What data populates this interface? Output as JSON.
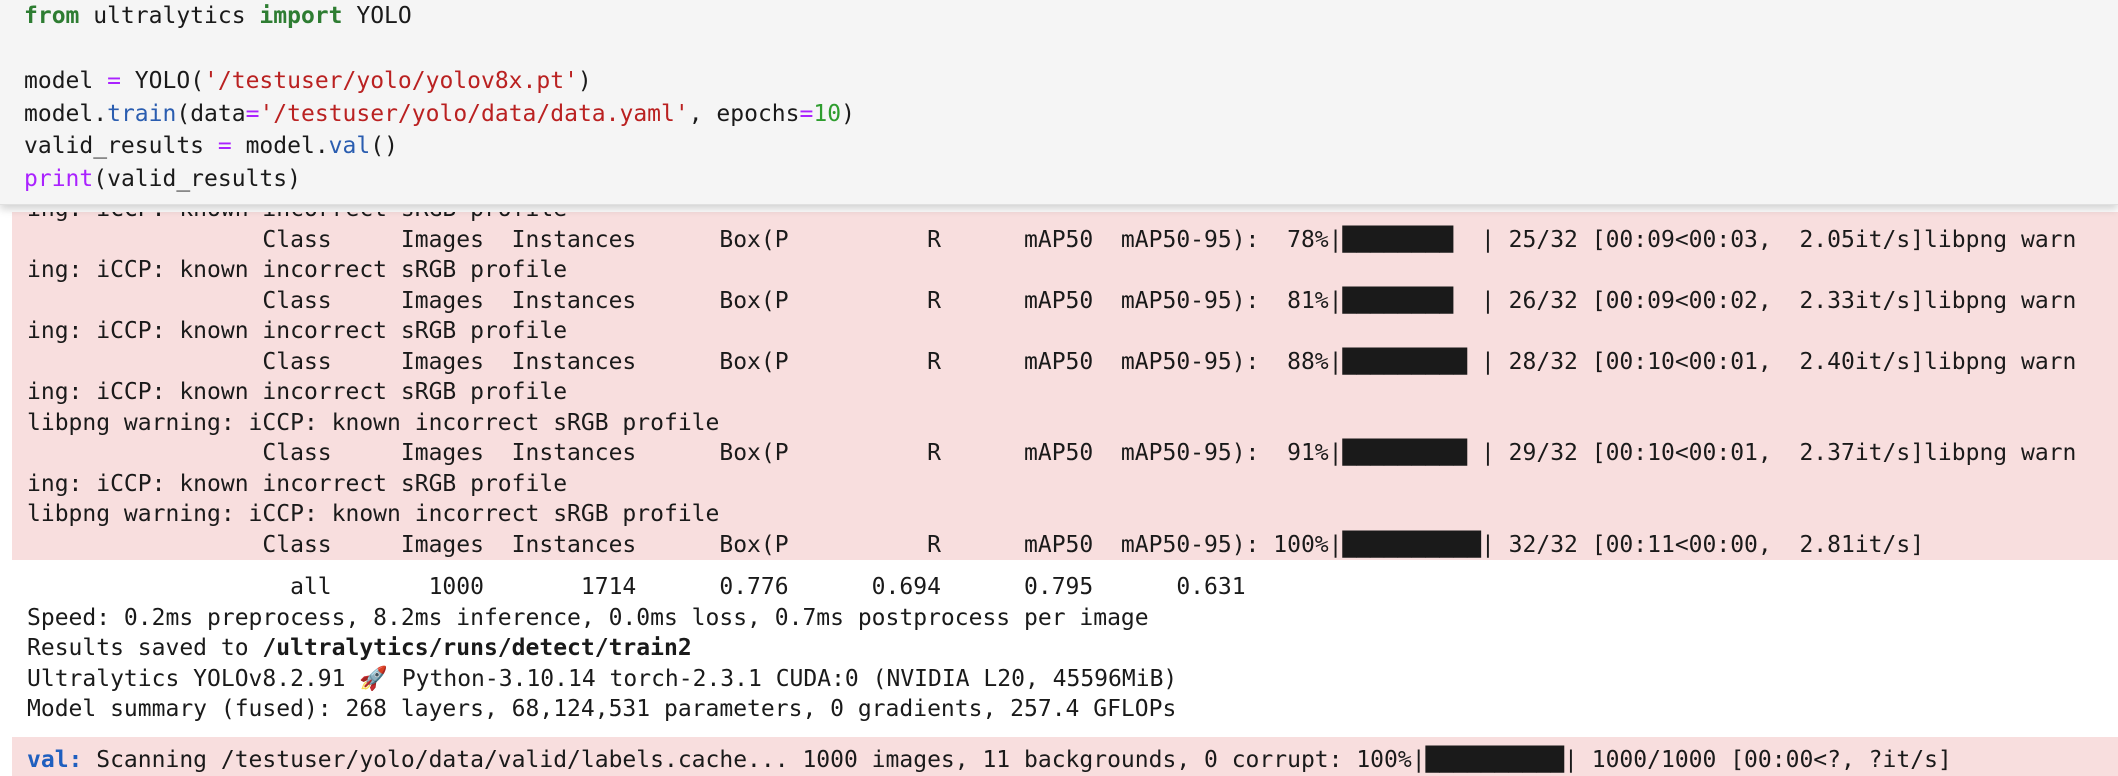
{
  "code_cell": {
    "lines": [
      [
        "from",
        " ultralytics ",
        "import",
        " YOLO"
      ],
      [],
      [
        "model ",
        "=",
        " YOLO(",
        "'/testuser/yolo/yolov8x.pt'",
        ")"
      ],
      [
        "model.",
        "train",
        "(data",
        "=",
        "'/testuser/yolo/data/data.yaml'",
        ", epochs",
        "=",
        "10",
        ")"
      ],
      [
        "valid_results ",
        "=",
        " model.",
        "val",
        "()"
      ],
      [
        "print",
        "(valid_results)"
      ]
    ]
  },
  "stderr_output": {
    "lines": [
      "ing: iCCP: known incorrect sRGB profile",
      "                 Class     Images  Instances      Box(P          R      mAP50  mAP50-95):  78%|████████  | 25/32 [00:09<00:03,  2.05it/s]libpng warn",
      "ing: iCCP: known incorrect sRGB profile",
      "                 Class     Images  Instances      Box(P          R      mAP50  mAP50-95):  81%|████████  | 26/32 [00:09<00:02,  2.33it/s]libpng warn",
      "ing: iCCP: known incorrect sRGB profile",
      "                 Class     Images  Instances      Box(P          R      mAP50  mAP50-95):  88%|█████████ | 28/32 [00:10<00:01,  2.40it/s]libpng warn",
      "ing: iCCP: known incorrect sRGB profile",
      "libpng warning: iCCP: known incorrect sRGB profile",
      "                 Class     Images  Instances      Box(P          R      mAP50  mAP50-95):  91%|█████████ | 29/32 [00:10<00:01,  2.37it/s]libpng warn",
      "ing: iCCP: known incorrect sRGB profile",
      "libpng warning: iCCP: known incorrect sRGB profile",
      "                 Class     Images  Instances      Box(P          R      mAP50  mAP50-95): 100%|██████████| 32/32 [00:11<00:00,  2.81it/s]"
    ]
  },
  "stdout_output": {
    "lines": [
      "                   all       1000       1714      0.776      0.694      0.795      0.631",
      "Speed: 0.2ms preprocess, 8.2ms inference, 0.0ms loss, 0.7ms postprocess per image",
      [
        "Results saved to ",
        "/ultralytics/runs/detect/train2"
      ],
      "Ultralytics YOLOv8.2.91 🚀 Python-3.10.14 torch-2.3.1 CUDA:0 (NVIDIA L20, 45596MiB)",
      "Model summary (fused): 268 layers, 68,124,531 parameters, 0 gradients, 257.4 GFLOPs"
    ]
  },
  "val_output": {
    "prefix": "val:",
    "text": " Scanning /testuser/yolo/data/valid/labels.cache... 1000 images, 11 backgrounds, 0 corrupt: 100%|██████████| 1000/1000 [00:00<?, ?it/s]"
  }
}
